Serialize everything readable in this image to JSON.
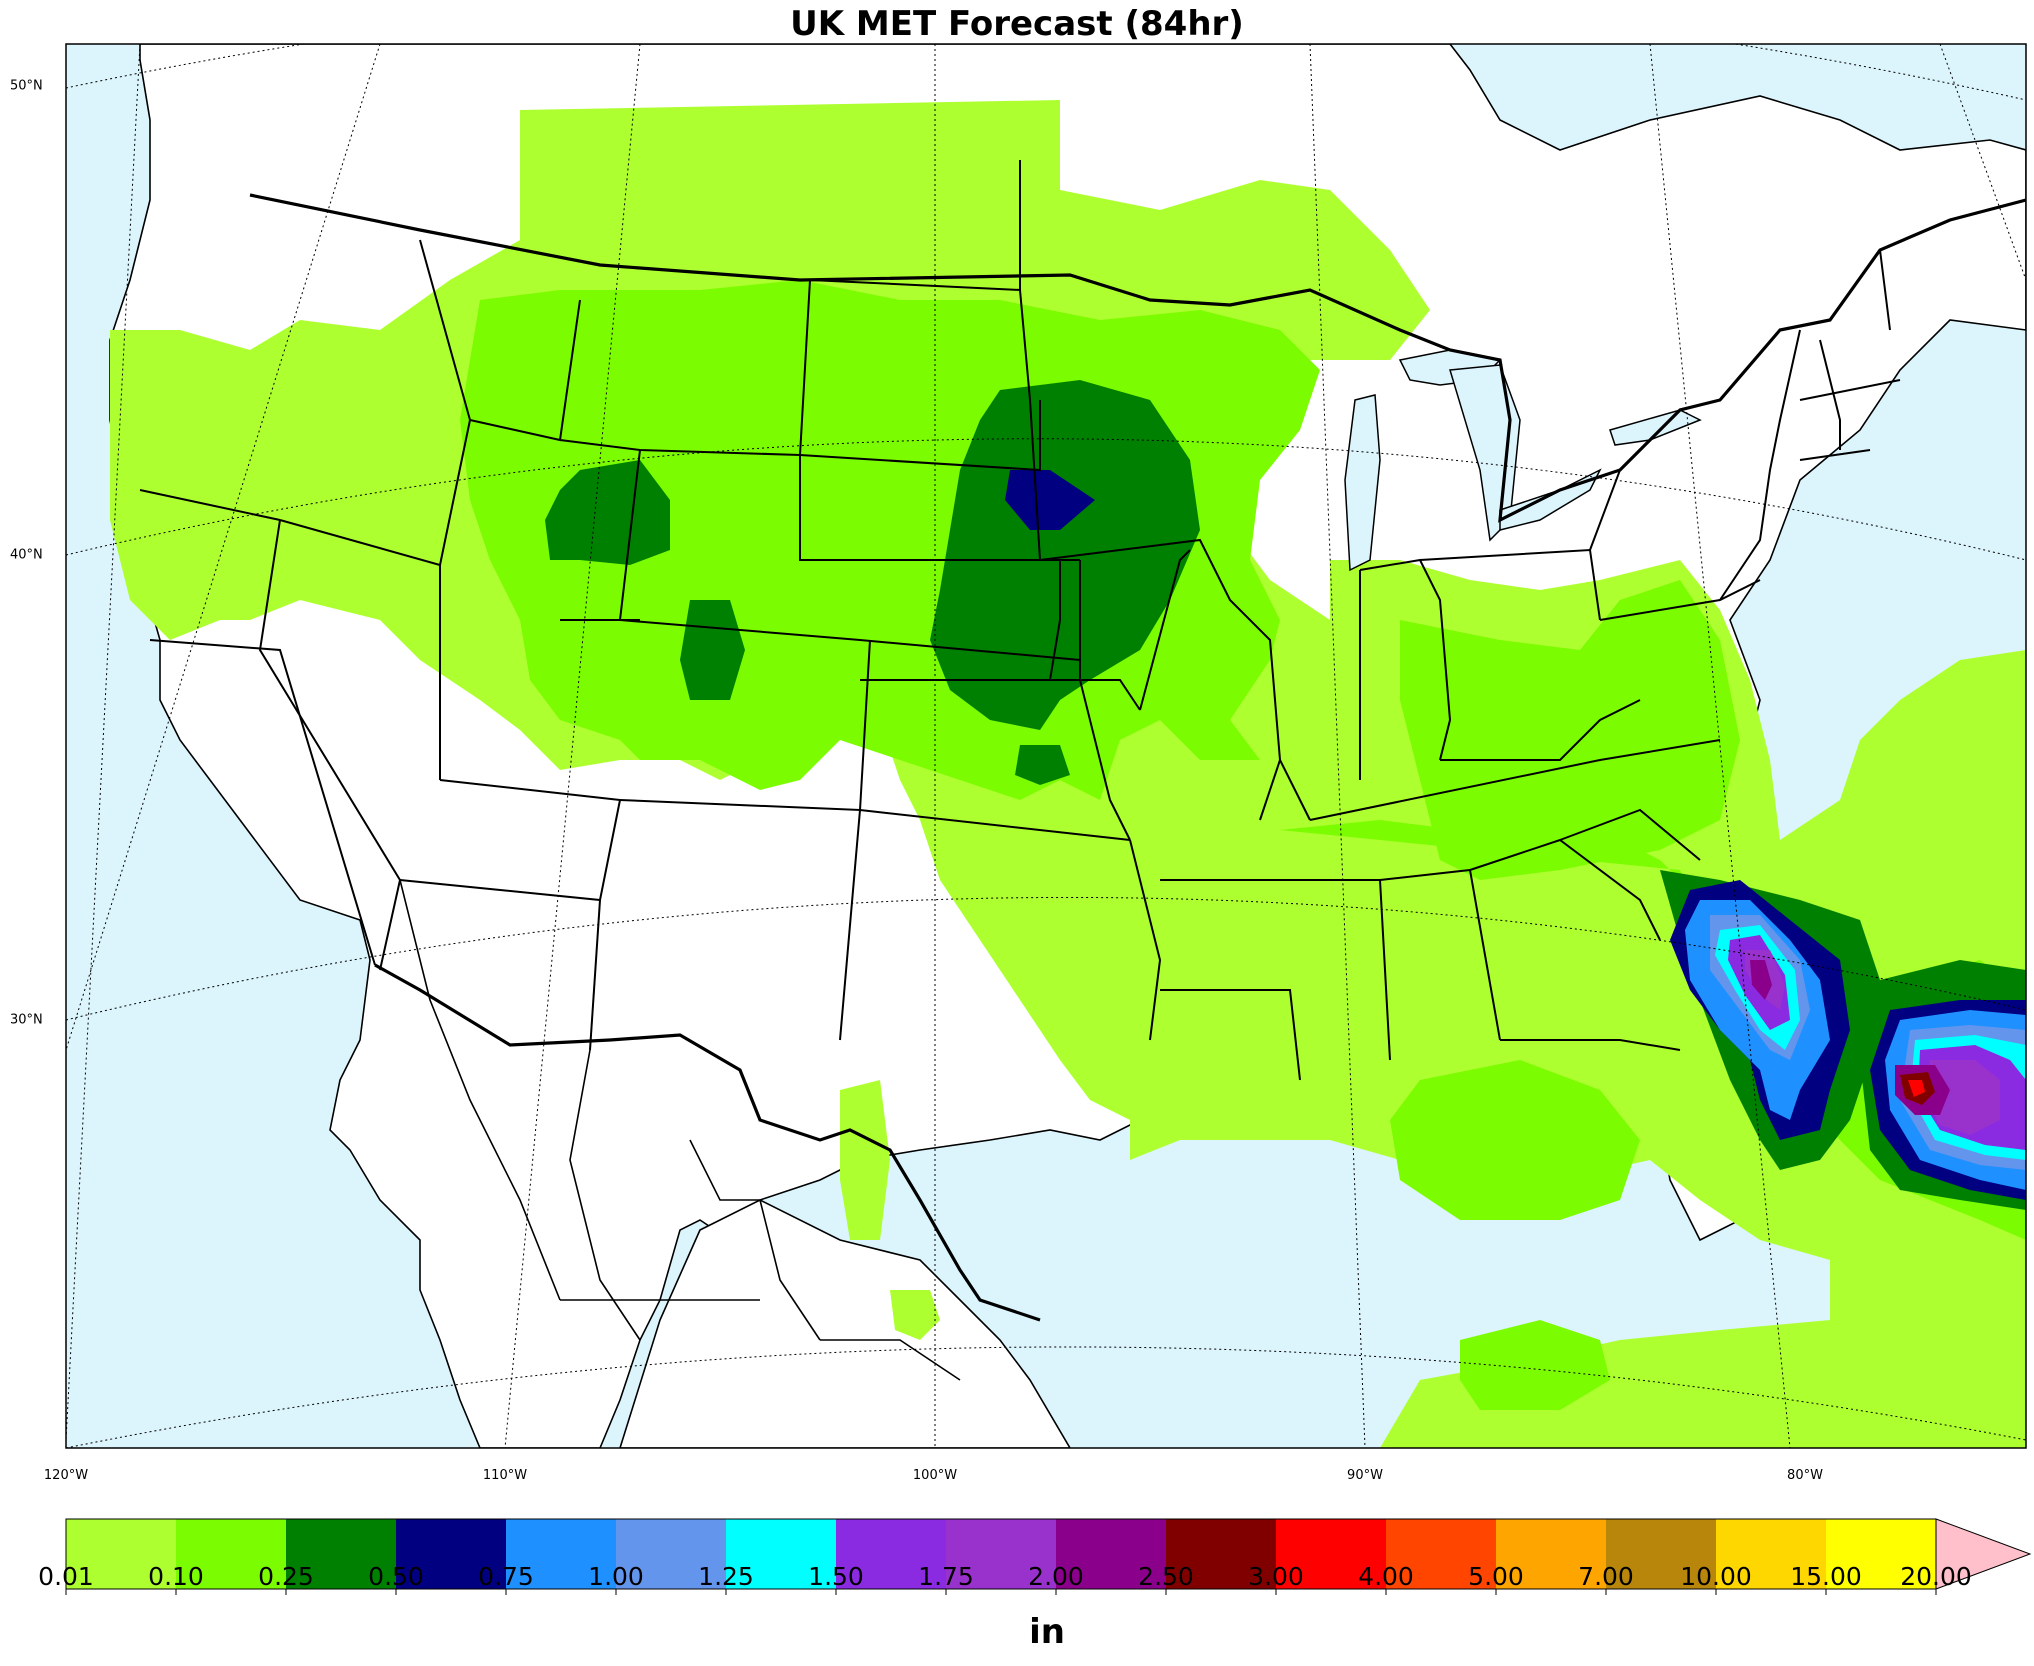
{
  "title": "UK MET Forecast (84hr)",
  "map": {
    "projection": "lambert-conformal",
    "region": "Continental United States",
    "colors": {
      "ocean": "#dcf4fc",
      "land": "#ffffff",
      "boundary": "#000000"
    },
    "lat_labels": [
      "50°N",
      "40°N",
      "30°N"
    ],
    "lon_labels": [
      "120°W",
      "110°W",
      "100°W",
      "90°W",
      "80°W"
    ]
  },
  "colorbar": {
    "unit": "in",
    "extend": "max",
    "levels": [
      "0.01",
      "0.10",
      "0.25",
      "0.50",
      "0.75",
      "1.00",
      "1.25",
      "1.50",
      "1.75",
      "2.00",
      "2.50",
      "3.00",
      "4.00",
      "5.00",
      "7.00",
      "10.00",
      "15.00",
      "20.00"
    ],
    "colors": [
      "#adff2f",
      "#7cfc00",
      "#008000",
      "#000080",
      "#1e90ff",
      "#6495ed",
      "#00ffff",
      "#8a2be2",
      "#9932cc",
      "#8b008b",
      "#800000",
      "#ff0000",
      "#ff4500",
      "#ffa500",
      "#b8860b",
      "#ffd700",
      "#ffff00"
    ],
    "extend_color": "#ffc0cb"
  }
}
